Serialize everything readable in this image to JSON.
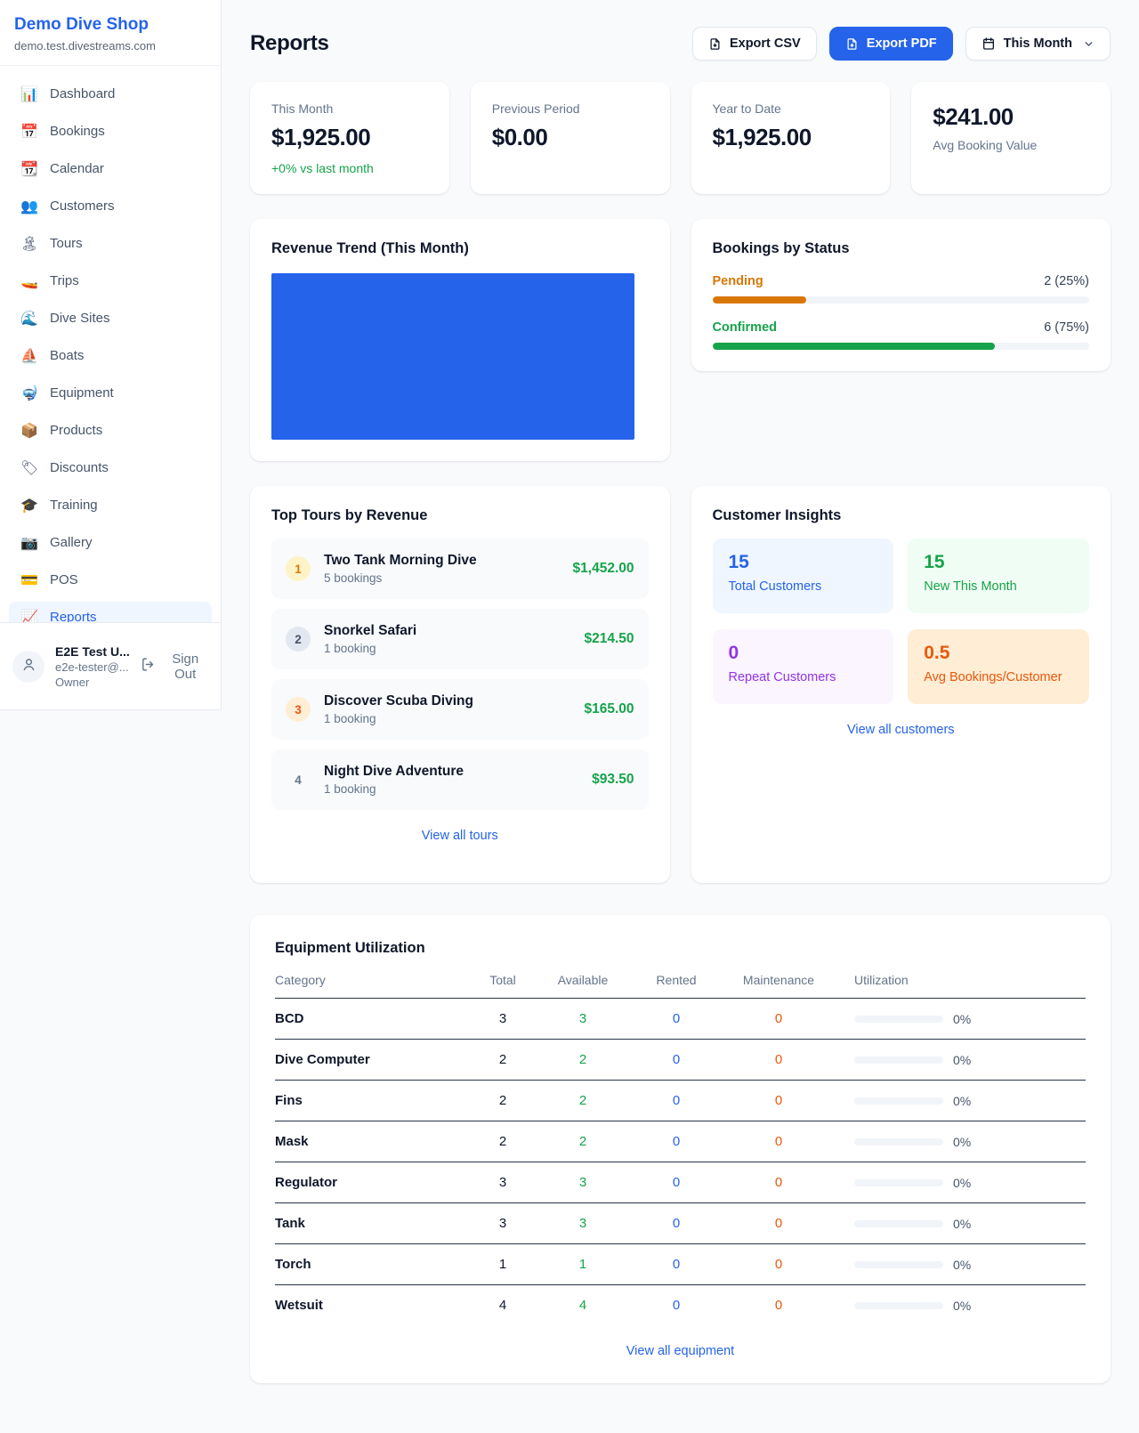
{
  "brand": {
    "name": "Demo Dive Shop",
    "domain": "demo.test.divestreams.com"
  },
  "nav": {
    "items": [
      {
        "icon": "📊",
        "label": "Dashboard"
      },
      {
        "icon": "📅",
        "label": "Bookings"
      },
      {
        "icon": "📆",
        "label": "Calendar"
      },
      {
        "icon": "👥",
        "label": "Customers"
      },
      {
        "icon": "🏝",
        "label": "Tours"
      },
      {
        "icon": "🚤",
        "label": "Trips"
      },
      {
        "icon": "🌊",
        "label": "Dive Sites"
      },
      {
        "icon": "⛵",
        "label": "Boats"
      },
      {
        "icon": "🤿",
        "label": "Equipment"
      },
      {
        "icon": "📦",
        "label": "Products"
      },
      {
        "icon": "🏷",
        "label": "Discounts"
      },
      {
        "icon": "🎓",
        "label": "Training"
      },
      {
        "icon": "📷",
        "label": "Gallery"
      },
      {
        "icon": "💳",
        "label": "POS"
      },
      {
        "icon": "📈",
        "label": "Reports",
        "active": true
      }
    ]
  },
  "user": {
    "name": "E2E Test U...",
    "email": "e2e-tester@...",
    "role": "Owner",
    "sign_out_label": "Sign Out"
  },
  "header": {
    "title": "Reports",
    "export_csv_label": "Export CSV",
    "export_pdf_label": "Export PDF",
    "period_label": "This Month"
  },
  "stats": {
    "cards": [
      {
        "label": "This Month",
        "value": "$1,925.00",
        "delta": "+0% vs last month",
        "layout": "label-first"
      },
      {
        "label": "Previous Period",
        "value": "$0.00",
        "layout": "label-first"
      },
      {
        "label": "Year to Date",
        "value": "$1,925.00",
        "layout": "label-first"
      },
      {
        "label": "Avg Booking Value",
        "value": "$241.00",
        "layout": "value-first"
      }
    ]
  },
  "revenue_trend": {
    "title": "Revenue Trend (This Month)",
    "fill_color": "#2563eb"
  },
  "bookings_by_status": {
    "title": "Bookings by Status",
    "rows": [
      {
        "label": "Pending",
        "value_text": "2 (25%)",
        "percent": 25,
        "color": "#d97706"
      },
      {
        "label": "Confirmed",
        "value_text": "6 (75%)",
        "percent": 75,
        "color": "#16a34a"
      }
    ]
  },
  "top_tours": {
    "title": "Top Tours by Revenue",
    "view_all_label": "View all tours",
    "rows": [
      {
        "rank": "1",
        "name": "Two Tank Morning Dive",
        "bookings": "5 bookings",
        "amount": "$1,452.00",
        "badge_bg": "#fef3c7",
        "badge_color": "#d97706"
      },
      {
        "rank": "2",
        "name": "Snorkel Safari",
        "bookings": "1 booking",
        "amount": "$214.50",
        "badge_bg": "#e2e8f0",
        "badge_color": "#475569"
      },
      {
        "rank": "3",
        "name": "Discover Scuba Diving",
        "bookings": "1 booking",
        "amount": "$165.00",
        "badge_bg": "#ffedd5",
        "badge_color": "#ea580c"
      },
      {
        "rank": "4",
        "name": "Night Dive Adventure",
        "bookings": "1 booking",
        "amount": "$93.50",
        "badge_bg": "transparent",
        "badge_color": "#64748b"
      }
    ]
  },
  "customer_insights": {
    "title": "Customer Insights",
    "view_all_label": "View all customers",
    "tiles": [
      {
        "value": "15",
        "label": "Total Customers",
        "bg": "#eff6ff",
        "color": "#2563eb"
      },
      {
        "value": "15",
        "label": "New This Month",
        "bg": "#f0fdf4",
        "color": "#16a34a"
      },
      {
        "value": "0",
        "label": "Repeat Customers",
        "bg": "#faf5ff",
        "color": "#9333ea"
      },
      {
        "value": "0.5",
        "label": "Avg Bookings/Customer",
        "bg": "#ffedd5",
        "color": "#ea580c"
      }
    ]
  },
  "equipment": {
    "title": "Equipment Utilization",
    "view_all_label": "View all equipment",
    "columns": [
      "Category",
      "Total",
      "Available",
      "Rented",
      "Maintenance",
      "Utilization"
    ],
    "colors": {
      "total": "#0f172a",
      "available": "#16a34a",
      "rented": "#2563eb",
      "maintenance": "#ea580c"
    },
    "rows": [
      {
        "category": "BCD",
        "total": "3",
        "available": "3",
        "rented": "0",
        "maintenance": "0",
        "utilization": "0%"
      },
      {
        "category": "Dive Computer",
        "total": "2",
        "available": "2",
        "rented": "0",
        "maintenance": "0",
        "utilization": "0%"
      },
      {
        "category": "Fins",
        "total": "2",
        "available": "2",
        "rented": "0",
        "maintenance": "0",
        "utilization": "0%"
      },
      {
        "category": "Mask",
        "total": "2",
        "available": "2",
        "rented": "0",
        "maintenance": "0",
        "utilization": "0%"
      },
      {
        "category": "Regulator",
        "total": "3",
        "available": "3",
        "rented": "0",
        "maintenance": "0",
        "utilization": "0%"
      },
      {
        "category": "Tank",
        "total": "3",
        "available": "3",
        "rented": "0",
        "maintenance": "0",
        "utilization": "0%"
      },
      {
        "category": "Torch",
        "total": "1",
        "available": "1",
        "rented": "0",
        "maintenance": "0",
        "utilization": "0%"
      },
      {
        "category": "Wetsuit",
        "total": "4",
        "available": "4",
        "rented": "0",
        "maintenance": "0",
        "utilization": "0%"
      }
    ]
  }
}
